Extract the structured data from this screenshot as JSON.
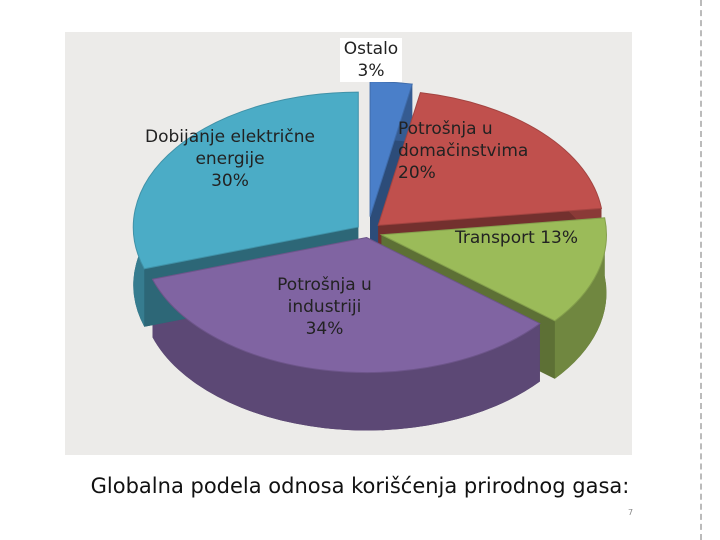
{
  "chart_data": {
    "type": "pie",
    "categories": [
      "Ostalo",
      "Potrošnja u domačinstvima",
      "Transport",
      "Potrošnja u industriji",
      "Dobijanje električne energije"
    ],
    "values": [
      3,
      20,
      13,
      34,
      30
    ],
    "value_labels": [
      "3%",
      "20%",
      "13%",
      "34%",
      "30%"
    ],
    "colors": [
      "#4a7fc9",
      "#c0504d",
      "#9bbb59",
      "#8064a2",
      "#4bacc6"
    ]
  },
  "caption": "Globalna podela odnosa korišćenja prirodnog gasa:",
  "page_number": 7
}
